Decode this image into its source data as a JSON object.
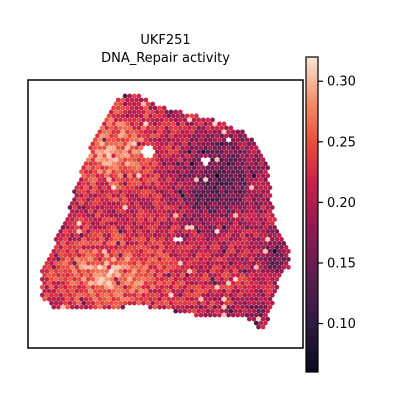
{
  "chart_data": {
    "type": "heatmap",
    "title": "UKF251",
    "subtitle": "DNA_Repair activity",
    "xlabel": "",
    "ylabel": "",
    "grid": false,
    "colormap": "rocket",
    "colorbar": {
      "range": [
        0.06,
        0.32
      ],
      "ticks": [
        0.1,
        0.15,
        0.2,
        0.25,
        0.3
      ],
      "tick_labels": [
        "0.10",
        "0.15",
        "0.20",
        "0.25",
        "0.30"
      ]
    },
    "regions": [
      {
        "region": "upper-left lobe",
        "approx_value": 0.27
      },
      {
        "region": "lower-left lobe",
        "approx_value": 0.28
      },
      {
        "region": "central band",
        "approx_value": 0.22
      },
      {
        "region": "upper-right area",
        "approx_value": 0.15
      },
      {
        "region": "right edge",
        "approx_value": 0.13
      },
      {
        "region": "bottom-right tail",
        "approx_value": 0.18
      }
    ]
  },
  "colors": {
    "low": "#0b0a1f",
    "mid_low": "#4a1c4d",
    "mid": "#b81c4c",
    "mid_high": "#ec4f3f",
    "high": "#f8dac6"
  }
}
